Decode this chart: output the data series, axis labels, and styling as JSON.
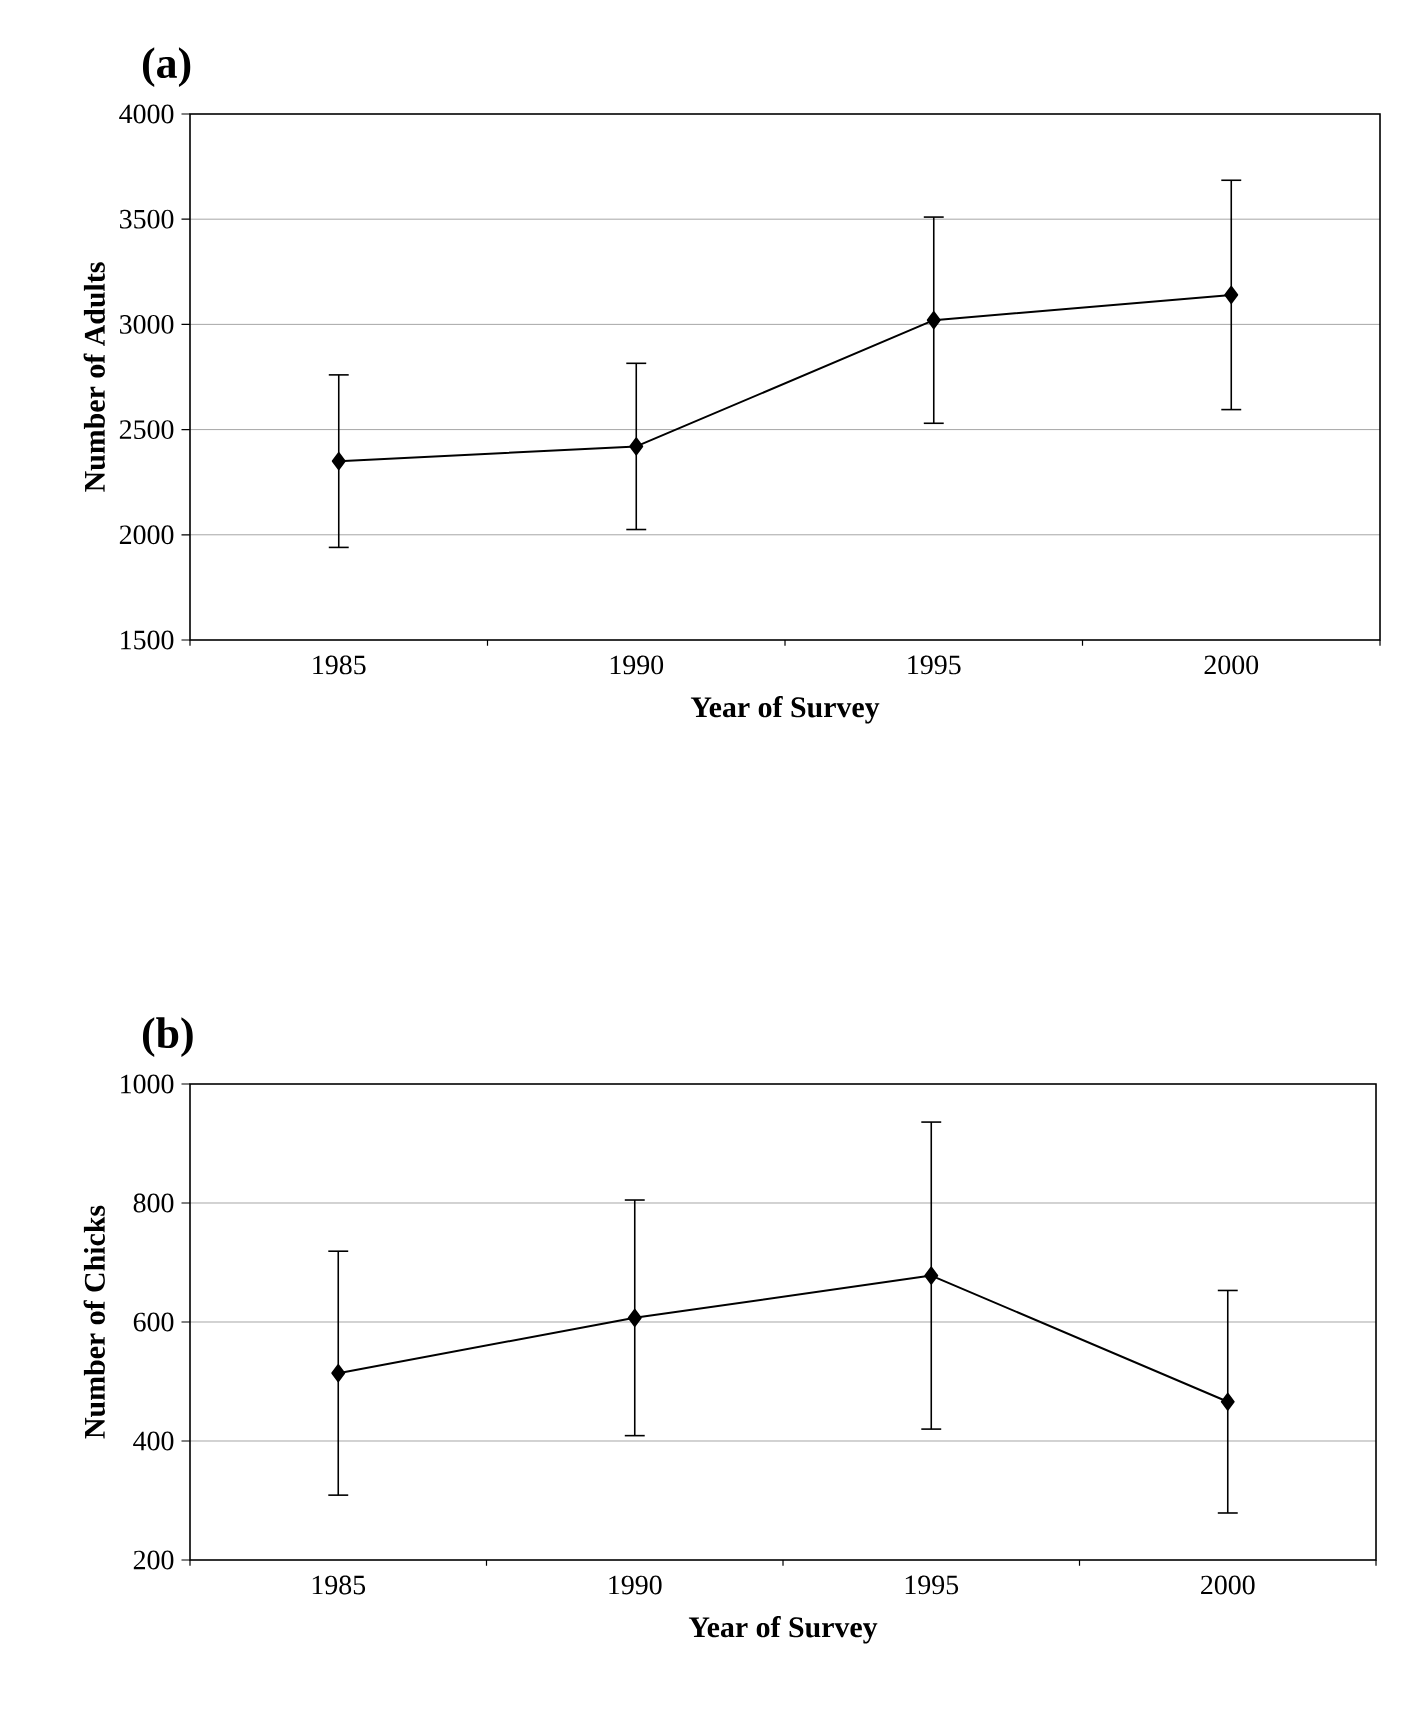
{
  "chart_data": [
    {
      "type": "line",
      "title": "(a)",
      "xlabel": "Year of Survey",
      "ylabel": "Number of Adults",
      "categories": [
        "1985",
        "1990",
        "1995",
        "2000"
      ],
      "values": [
        2350,
        2420,
        3020,
        3140
      ],
      "errors": [
        410,
        395,
        490,
        545
      ],
      "color": "#000000",
      "marker": "diamond",
      "line_style": "solid",
      "grid": "y",
      "ylim": [
        1500,
        4000
      ],
      "yticks": [
        1500,
        2000,
        2500,
        3000,
        3500,
        4000
      ]
    },
    {
      "type": "line",
      "title": "(b)",
      "xlabel": "Year of Survey",
      "ylabel": "Number of Chicks",
      "categories": [
        "1985",
        "1990",
        "1995",
        "2000"
      ],
      "values": [
        514,
        607,
        678,
        466
      ],
      "errors": [
        205,
        198,
        258,
        187
      ],
      "color": "#000000",
      "marker": "diamond",
      "line_style": "solid",
      "grid": "y",
      "ylim": [
        200,
        1000
      ],
      "yticks": [
        200,
        400,
        600,
        800,
        1000
      ]
    }
  ]
}
